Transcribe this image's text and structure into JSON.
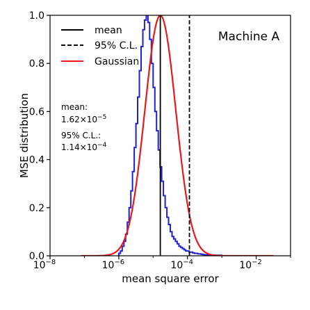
{
  "chart_data": {
    "type": "line",
    "title": "",
    "xlabel": "mean square error",
    "ylabel": "MSE distribution",
    "xscale": "log",
    "xlim": [
      1e-08,
      0.1
    ],
    "ylim": [
      0,
      1.0
    ],
    "x_ticks": [
      {
        "value": 1e-08,
        "base": "10",
        "exp": "−8"
      },
      {
        "value": 1e-06,
        "base": "10",
        "exp": "−6"
      },
      {
        "value": 0.0001,
        "base": "10",
        "exp": "−4"
      },
      {
        "value": 0.01,
        "base": "10",
        "exp": "−2"
      }
    ],
    "y_ticks": [
      {
        "value": 0.0,
        "label": "0.0"
      },
      {
        "value": 0.2,
        "label": "0.2"
      },
      {
        "value": 0.4,
        "label": "0.4"
      },
      {
        "value": 0.6,
        "label": "0.6"
      },
      {
        "value": 0.8,
        "label": "0.8"
      },
      {
        "value": 1.0,
        "label": "1.0"
      }
    ],
    "panel_label": "Machine A",
    "legend_position": "top-left",
    "legend": [
      {
        "label": "mean",
        "style": "solid",
        "color": "#000000"
      },
      {
        "label": "95% C.L.",
        "style": "dashed",
        "color": "#000000"
      },
      {
        "label": "Gaussian",
        "style": "solid",
        "color": "#e41a1c"
      }
    ],
    "annotations": {
      "mean_label": "mean:",
      "mean_mantissa": "1.62×10",
      "mean_exp": "−5",
      "cl_label": "95% C.L.:",
      "cl_mantissa": "1.14×10",
      "cl_exp": "−4"
    },
    "mean_value": 1.62e-05,
    "cl95_value": 0.000114,
    "gaussian": {
      "center_log10": -4.79,
      "sigma_log10": 0.45,
      "peak": 1.0,
      "color": "#e41a1c"
    },
    "histogram": {
      "color": "#1f1fd6",
      "log10_bin_edges": [
        -6.0,
        -5.95,
        -5.9,
        -5.85,
        -5.8,
        -5.75,
        -5.7,
        -5.65,
        -5.6,
        -5.55,
        -5.5,
        -5.45,
        -5.4,
        -5.35,
        -5.3,
        -5.25,
        -5.2,
        -5.15,
        -5.1,
        -5.05,
        -5.0,
        -4.95,
        -4.9,
        -4.85,
        -4.8,
        -4.75,
        -4.7,
        -4.65,
        -4.6,
        -4.55,
        -4.5,
        -4.45,
        -4.4,
        -4.35,
        -4.3,
        -4.25,
        -4.2,
        -4.15,
        -4.1,
        -4.05,
        -4.0,
        -3.95,
        -3.9,
        -3.85,
        -3.8,
        -3.75,
        -3.7,
        -3.65,
        -3.6,
        -3.55,
        -3.5,
        -3.4,
        -3.3,
        -3.2,
        -3.1,
        -3.0,
        -2.8
      ],
      "values": [
        0.01,
        0.02,
        0.04,
        0.06,
        0.09,
        0.14,
        0.2,
        0.27,
        0.35,
        0.45,
        0.55,
        0.66,
        0.77,
        0.87,
        0.94,
        0.98,
        1.0,
        0.97,
        0.9,
        0.8,
        0.7,
        0.6,
        0.52,
        0.44,
        0.37,
        0.31,
        0.25,
        0.2,
        0.16,
        0.13,
        0.1,
        0.08,
        0.07,
        0.06,
        0.05,
        0.04,
        0.035,
        0.03,
        0.025,
        0.02,
        0.02,
        0.015,
        0.015,
        0.012,
        0.01,
        0.01,
        0.008,
        0.008,
        0.006,
        0.005,
        0.004,
        0.003,
        0.003,
        0.002,
        0.002,
        0.0
      ]
    }
  }
}
